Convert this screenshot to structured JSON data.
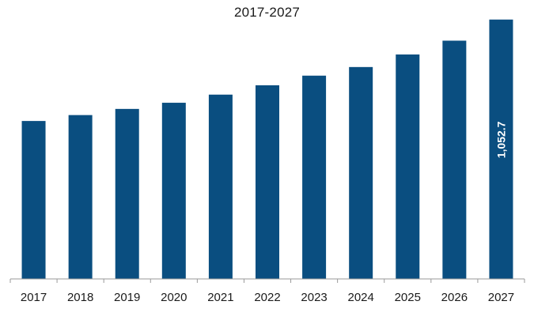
{
  "chart_data": {
    "type": "bar",
    "title": "2017-2027",
    "xlabel": "",
    "ylabel": "",
    "categories": [
      "2017",
      "2018",
      "2019",
      "2020",
      "2021",
      "2022",
      "2023",
      "2024",
      "2025",
      "2026",
      "2027"
    ],
    "values": [
      641,
      665,
      690,
      715,
      748,
      786,
      825,
      860,
      911,
      967,
      1052.7
    ],
    "data_labels": [
      "",
      "",
      "",
      "",
      "",
      "",
      "",
      "",
      "",
      "",
      "1,052.7"
    ],
    "ylim": [
      0,
      1100
    ],
    "grid": false,
    "legend": "none",
    "colors": {
      "bar": "#0a4e80",
      "label_text": "#ffffff",
      "axis": "#9a9a9a",
      "text": "#1a1a1a"
    }
  }
}
